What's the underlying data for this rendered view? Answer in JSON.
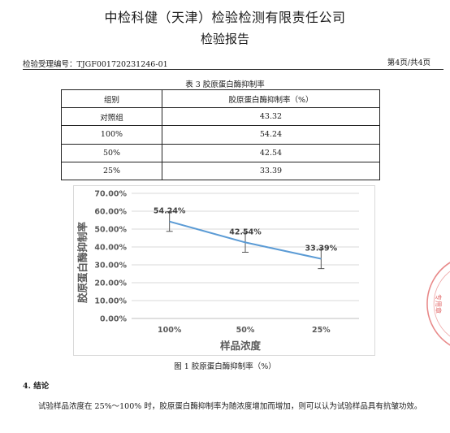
{
  "header": {
    "company": "中检科健（天津）检验检测有限责任公司",
    "report_title": "检验报告",
    "acceptance_no": "检验受理编号：TJGF001720231246-01",
    "page_info": "第4页/共4页"
  },
  "table": {
    "caption": "表 3  胶原蛋白酶抑制率",
    "headers": [
      "组别",
      "胶原蛋白酶抑制率（%）"
    ],
    "rows": [
      [
        "对照组",
        "43.32"
      ],
      [
        "100%",
        "54.24"
      ],
      [
        "50%",
        "42.54"
      ],
      [
        "25%",
        "33.39"
      ]
    ]
  },
  "figure_caption": "图 1  胶原蛋白酶抑制率（%）",
  "chart_data": {
    "type": "line",
    "categories": [
      "100%",
      "50%",
      "25%"
    ],
    "values": [
      54.24,
      42.54,
      33.39
    ],
    "data_labels": [
      "54.24%",
      "42.54%",
      "33.39%"
    ],
    "error": [
      5.5,
      5.5,
      5.5
    ],
    "xlabel": "样品浓度",
    "ylabel": "胶原蛋白酶抑制率",
    "ylim": [
      0,
      70
    ],
    "yticks": [
      "0.00%",
      "10.00%",
      "20.00%",
      "30.00%",
      "40.00%",
      "50.00%",
      "60.00%",
      "70.00%"
    ],
    "grid": true,
    "line_color": "#5b9bd5",
    "error_color": "#555555"
  },
  "conclusion": {
    "heading": "4. 结论",
    "text": "试验样品浓度在 25%～100% 时，胶原蛋白酶抑制率为随浓度增加而增加，则可以认为试验样品具有抗皱功效。"
  },
  "stamp": {
    "text": "专用章",
    "color": "#e26b6b"
  }
}
